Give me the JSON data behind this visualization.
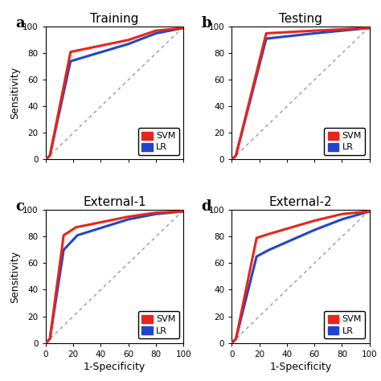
{
  "panels": [
    {
      "label": "a",
      "title": "Training",
      "svm_x": [
        0,
        3,
        18,
        60,
        80,
        100
      ],
      "svm_y": [
        0,
        3,
        81,
        90,
        97,
        99
      ],
      "lr_x": [
        0,
        3,
        18,
        60,
        80,
        100
      ],
      "lr_y": [
        0,
        3,
        74,
        87,
        95,
        99
      ]
    },
    {
      "label": "b",
      "title": "Testing",
      "svm_x": [
        0,
        3,
        25,
        60,
        80,
        100
      ],
      "svm_y": [
        0,
        3,
        95,
        97,
        98,
        99
      ],
      "lr_x": [
        0,
        3,
        25,
        60,
        80,
        100
      ],
      "lr_y": [
        0,
        3,
        91,
        95,
        97,
        99
      ]
    },
    {
      "label": "c",
      "title": "External-1",
      "svm_x": [
        0,
        3,
        13,
        22,
        60,
        80,
        100
      ],
      "svm_y": [
        0,
        3,
        81,
        87,
        95,
        98,
        99
      ],
      "lr_x": [
        0,
        3,
        13,
        23,
        60,
        80,
        100
      ],
      "lr_y": [
        0,
        3,
        70,
        81,
        93,
        97,
        99
      ]
    },
    {
      "label": "d",
      "title": "External-2",
      "svm_x": [
        0,
        3,
        18,
        27,
        60,
        80,
        100
      ],
      "svm_y": [
        0,
        3,
        79,
        82,
        92,
        97,
        99
      ],
      "lr_x": [
        0,
        3,
        18,
        27,
        60,
        80,
        100
      ],
      "lr_y": [
        0,
        3,
        65,
        70,
        85,
        93,
        99
      ]
    }
  ],
  "svm_color": "#E8251A",
  "lr_color": "#2244CC",
  "diag_color": "#999999",
  "linewidth": 2.2,
  "xlabel": "1-Specificity",
  "ylabel": "Sensitivity",
  "xlim": [
    0,
    100
  ],
  "ylim": [
    0,
    100
  ],
  "xticks": [
    0,
    20,
    40,
    60,
    80,
    100
  ],
  "yticks": [
    0,
    20,
    40,
    60,
    80,
    100
  ],
  "tick_fontsize": 7.5,
  "title_fontsize": 11,
  "panel_label_fontsize": 13,
  "axis_label_fontsize": 9,
  "legend_fontsize": 8,
  "bg_color": "#f0f0f0"
}
